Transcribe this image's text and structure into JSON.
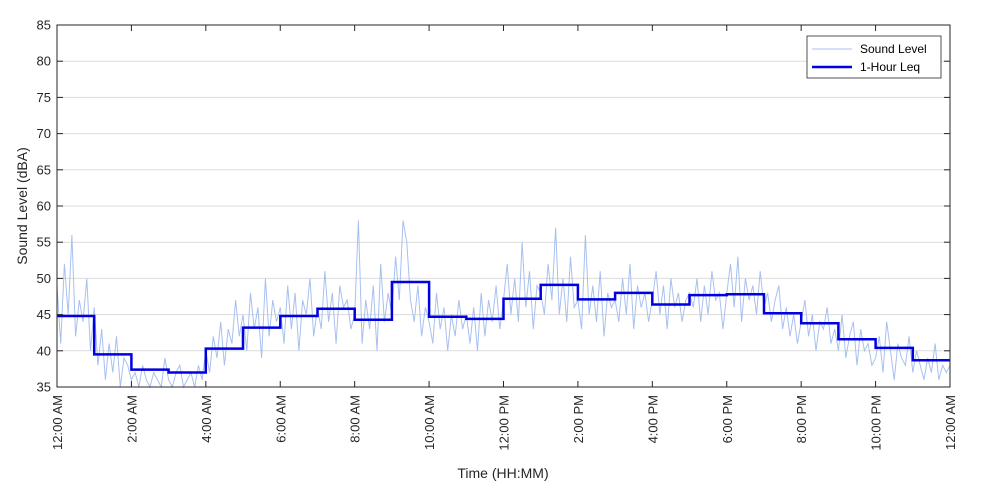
{
  "chart_data": {
    "type": "line",
    "xlabel": "Time (HH:MM)",
    "ylabel": "Sound Level (dBA)",
    "ylim": [
      35,
      85
    ],
    "yticks": [
      35,
      40,
      45,
      50,
      55,
      60,
      65,
      70,
      75,
      80,
      85
    ],
    "xlim_hours": [
      0,
      24
    ],
    "xtick_hours": [
      0,
      2,
      4,
      6,
      8,
      10,
      12,
      14,
      16,
      18,
      20,
      22,
      24
    ],
    "xtick_labels": [
      "12:00 AM",
      "2:00 AM",
      "4:00 AM",
      "6:00 AM",
      "8:00 AM",
      "10:00 AM",
      "12:00 PM",
      "2:00 PM",
      "4:00 PM",
      "6:00 PM",
      "8:00 PM",
      "10:00 PM",
      "12:00 AM"
    ],
    "grid": "horizontal",
    "legend_position": "top-right",
    "colors": {
      "sound_level": "#a8c0f0",
      "leq": "#0000e0"
    },
    "series": [
      {
        "name": "Sound Level",
        "kind": "fluctuating",
        "x_hours": [
          0,
          0.1,
          0.2,
          0.3,
          0.4,
          0.5,
          0.6,
          0.7,
          0.8,
          0.9,
          1.0,
          1.1,
          1.2,
          1.3,
          1.4,
          1.5,
          1.6,
          1.7,
          1.8,
          1.9,
          2.0,
          2.1,
          2.2,
          2.3,
          2.4,
          2.5,
          2.6,
          2.7,
          2.8,
          2.9,
          3.0,
          3.1,
          3.2,
          3.3,
          3.4,
          3.5,
          3.6,
          3.7,
          3.8,
          3.9,
          4.0,
          4.1,
          4.2,
          4.3,
          4.4,
          4.5,
          4.6,
          4.7,
          4.8,
          4.9,
          5.0,
          5.1,
          5.2,
          5.3,
          5.4,
          5.5,
          5.6,
          5.7,
          5.8,
          5.9,
          6.0,
          6.1,
          6.2,
          6.3,
          6.4,
          6.5,
          6.6,
          6.7,
          6.8,
          6.9,
          7.0,
          7.1,
          7.2,
          7.3,
          7.4,
          7.5,
          7.6,
          7.7,
          7.8,
          7.9,
          8.0,
          8.1,
          8.2,
          8.3,
          8.4,
          8.5,
          8.6,
          8.7,
          8.8,
          8.9,
          9.0,
          9.1,
          9.2,
          9.3,
          9.4,
          9.5,
          9.6,
          9.7,
          9.8,
          9.9,
          10.0,
          10.1,
          10.2,
          10.3,
          10.4,
          10.5,
          10.6,
          10.7,
          10.8,
          10.9,
          11.0,
          11.1,
          11.2,
          11.3,
          11.4,
          11.5,
          11.6,
          11.7,
          11.8,
          11.9,
          12.0,
          12.1,
          12.2,
          12.3,
          12.4,
          12.5,
          12.6,
          12.7,
          12.8,
          12.9,
          13.0,
          13.1,
          13.2,
          13.3,
          13.4,
          13.5,
          13.6,
          13.7,
          13.8,
          13.9,
          14.0,
          14.1,
          14.2,
          14.3,
          14.4,
          14.5,
          14.6,
          14.7,
          14.8,
          14.9,
          15.0,
          15.1,
          15.2,
          15.3,
          15.4,
          15.5,
          15.6,
          15.7,
          15.8,
          15.9,
          16.0,
          16.1,
          16.2,
          16.3,
          16.4,
          16.5,
          16.6,
          16.7,
          16.8,
          16.9,
          17.0,
          17.1,
          17.2,
          17.3,
          17.4,
          17.5,
          17.6,
          17.7,
          17.8,
          17.9,
          18.0,
          18.1,
          18.2,
          18.3,
          18.4,
          18.5,
          18.6,
          18.7,
          18.8,
          18.9,
          19.0,
          19.1,
          19.2,
          19.3,
          19.4,
          19.5,
          19.6,
          19.7,
          19.8,
          19.9,
          20.0,
          20.1,
          20.2,
          20.3,
          20.4,
          20.5,
          20.6,
          20.7,
          20.8,
          20.9,
          21.0,
          21.1,
          21.2,
          21.3,
          21.4,
          21.5,
          21.6,
          21.7,
          21.8,
          21.9,
          22.0,
          22.1,
          22.2,
          22.3,
          22.4,
          22.5,
          22.6,
          22.7,
          22.8,
          22.9,
          23.0,
          23.1,
          23.2,
          23.3,
          23.4,
          23.5,
          23.6,
          23.7,
          23.8,
          23.9,
          24.0
        ],
        "values": [
          49,
          41,
          52,
          45,
          56,
          42,
          47,
          44,
          50,
          40,
          46,
          38,
          43,
          36,
          41,
          37,
          42,
          35,
          39,
          38,
          36,
          37,
          35,
          38,
          36,
          35,
          37,
          36,
          35,
          39,
          36,
          35,
          37,
          38,
          35,
          36,
          37,
          35,
          38,
          36,
          40,
          37,
          42,
          39,
          44,
          38,
          43,
          41,
          47,
          42,
          45,
          40,
          48,
          43,
          46,
          39,
          50,
          42,
          47,
          44,
          46,
          41,
          49,
          43,
          48,
          40,
          47,
          45,
          50,
          42,
          46,
          43,
          51,
          44,
          48,
          41,
          49,
          46,
          47,
          43,
          45,
          58,
          41,
          47,
          43,
          49,
          40,
          52,
          44,
          48,
          45,
          53,
          47,
          58,
          55,
          47,
          44,
          49,
          42,
          46,
          44,
          41,
          48,
          43,
          46,
          40,
          45,
          42,
          47,
          43,
          45,
          41,
          46,
          40,
          48,
          42,
          47,
          44,
          49,
          43,
          47,
          52,
          45,
          50,
          44,
          55,
          46,
          51,
          43,
          49,
          48,
          45,
          52,
          47,
          57,
          45,
          50,
          44,
          53,
          46,
          47,
          43,
          56,
          45,
          49,
          44,
          51,
          42,
          48,
          46,
          47,
          44,
          50,
          45,
          52,
          43,
          49,
          46,
          48,
          44,
          47,
          51,
          45,
          49,
          43,
          50,
          46,
          48,
          44,
          47,
          48,
          46,
          50,
          44,
          49,
          45,
          51,
          47,
          48,
          43,
          48,
          52,
          46,
          53,
          44,
          50,
          47,
          49,
          45,
          51,
          46,
          48,
          44,
          47,
          49,
          43,
          46,
          42,
          45,
          41,
          44,
          47,
          42,
          45,
          40,
          44,
          43,
          46,
          41,
          43,
          40,
          45,
          39,
          42,
          44,
          38,
          43,
          40,
          41,
          38,
          39,
          42,
          37,
          44,
          40,
          36,
          41,
          39,
          38,
          42,
          37,
          40,
          38,
          36,
          39,
          37,
          41,
          36,
          38,
          37,
          38
        ]
      },
      {
        "name": "1-Hour Leq",
        "kind": "step",
        "hour_start": [
          0,
          1,
          2,
          3,
          4,
          5,
          6,
          7,
          8,
          9,
          10,
          11,
          12,
          13,
          14,
          15,
          16,
          17,
          18,
          19,
          20,
          21,
          22,
          23
        ],
        "values": [
          44.8,
          39.5,
          37.4,
          37.0,
          40.3,
          43.2,
          44.8,
          45.8,
          44.3,
          49.5,
          44.7,
          44.4,
          47.2,
          49.1,
          47.1,
          48.0,
          46.4,
          47.7,
          47.8,
          45.2,
          43.8,
          41.6,
          40.4,
          38.7
        ]
      }
    ]
  }
}
